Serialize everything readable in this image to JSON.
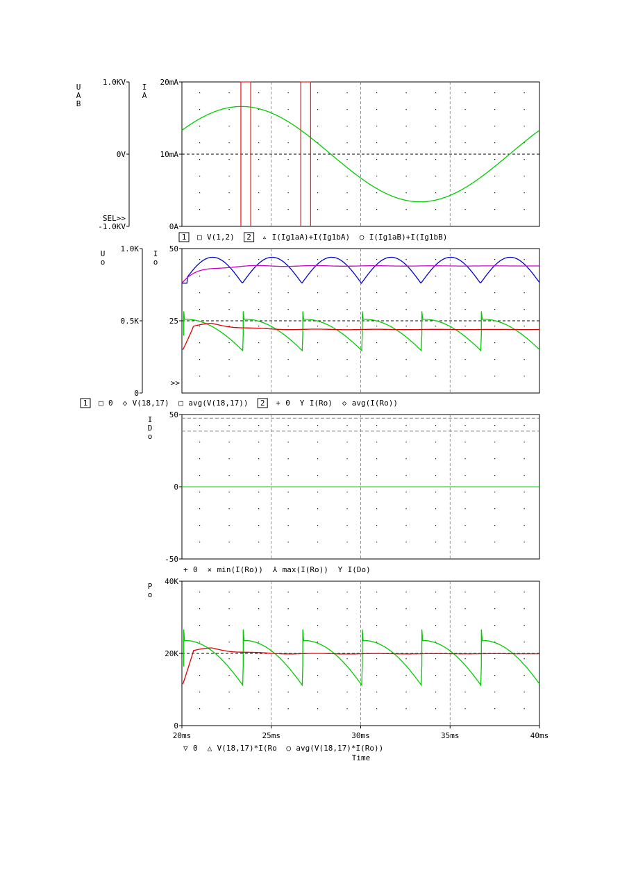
{
  "chart_data": [
    {
      "type": "line",
      "title": "",
      "xlabel": "",
      "xlim": [
        20,
        40
      ],
      "xticks": [
        "20ms",
        "25ms",
        "30ms",
        "35ms",
        "40ms"
      ],
      "left_axis": {
        "label": [
          "U",
          "A",
          "B"
        ],
        "ylim": [
          -1000,
          1000
        ],
        "ticks": [
          "1.0KV",
          "0V",
          "-1.0KV"
        ],
        "extra_text": "SEL>>"
      },
      "right_axis": {
        "label": [
          "I",
          "A"
        ],
        "ylim": [
          0,
          20
        ],
        "ticks": [
          "20mA",
          "10mA",
          "0A"
        ]
      },
      "legend": [
        {
          "box": "1",
          "marker": "□",
          "text": "V(1,2)",
          "color": "#00cc00"
        },
        {
          "box": "2",
          "marker": "▵",
          "text": "I(Ig1aA)+I(Ig1bA)",
          "color": "#dd0000"
        },
        {
          "box": "",
          "marker": "○",
          "text": "I(Ig1aB)+I(Ig1bB)",
          "color": "#0000cc"
        }
      ],
      "series": [
        {
          "name": "V(1,2)",
          "axis": "left",
          "color": "#00cc00",
          "amplitude": 660,
          "period_ms": 20,
          "peak_time_ms": 23.33
        },
        {
          "name": "I(Ig1aA)+I(Ig1bA)",
          "axis": "right",
          "color": "#ee2222",
          "pulses": [
            [
              23.3,
              23.85
            ],
            [
              26.65,
              27.2
            ]
          ],
          "high": 20,
          "low": 0
        }
      ]
    },
    {
      "type": "line",
      "xlim": [
        20,
        40
      ],
      "left_axis": {
        "label": [
          "U",
          "o"
        ],
        "ylim": [
          0,
          1000
        ],
        "ticks": [
          "1.0K",
          "0.5K",
          "0"
        ]
      },
      "right_axis": {
        "label": [
          "I",
          "o"
        ],
        "ylim": [
          0,
          50
        ],
        "ticks": [
          "50",
          "25"
        ],
        "extra_text": ">>"
      },
      "legend": [
        {
          "box": "1",
          "marker": "□",
          "text": "0",
          "color": "#000000"
        },
        {
          "box": "",
          "marker": "◇",
          "text": "V(18,17)",
          "color": "#00cc00"
        },
        {
          "box": "",
          "marker": "□",
          "text": "avg(V(18,17))",
          "color": "#dd0000"
        },
        {
          "box": "2",
          "marker": "+",
          "text": "0",
          "color": "#000000"
        },
        {
          "box": "",
          "marker": "Y",
          "text": "I(Ro)",
          "color": "#0000cc"
        },
        {
          "box": "",
          "marker": "◇",
          "text": "avg(I(Ro))",
          "color": "#cc00cc"
        }
      ],
      "series": [
        {
          "name": "V(18,17)",
          "axis": "left",
          "color": "#00cc00",
          "shape": "sawtooth",
          "period_ms": 3.33,
          "start_ms": 20.1,
          "peak": 510,
          "trough": 290,
          "jump_to": 410
        },
        {
          "name": "avg(V(18,17))",
          "axis": "left",
          "color": "#dd0000",
          "settle": 440,
          "overshoot_peak": 490
        },
        {
          "name": "I(Ro)",
          "axis": "right",
          "color": "#0000cc",
          "shape": "rectified-sine",
          "period_ms": 3.33,
          "peak": 47,
          "trough": 38
        },
        {
          "name": "avg(I(Ro))",
          "axis": "right",
          "color": "#cc00cc",
          "settle": 44,
          "start": 38
        }
      ]
    },
    {
      "type": "line",
      "xlim": [
        20,
        40
      ],
      "left_axis": {
        "label": [
          "I",
          "D",
          "o"
        ],
        "ylim": [
          -50,
          50
        ],
        "ticks": [
          "50",
          "0",
          "-50"
        ]
      },
      "legend": [
        {
          "box": "",
          "marker": "+",
          "text": "0",
          "color": "#000000"
        },
        {
          "box": "",
          "marker": "×",
          "text": "min(I(Ro))",
          "color": "#000000"
        },
        {
          "box": "",
          "marker": "⅄",
          "text": "max(I(Ro))",
          "color": "#000000"
        },
        {
          "box": "",
          "marker": "Y",
          "text": "I(Do)",
          "color": "#00cc00"
        }
      ],
      "series": [
        {
          "name": "max(I(Ro))",
          "axis": "left",
          "color": "#888888",
          "value": 47.5,
          "style": "dashed"
        },
        {
          "name": "min(I(Ro))",
          "axis": "left",
          "color": "#888888",
          "value": 38.5,
          "style": "dashed"
        },
        {
          "name": "I(Do)",
          "axis": "left",
          "color": "#00cc00",
          "value": 0
        }
      ]
    },
    {
      "type": "line",
      "xlim": [
        20,
        40
      ],
      "xlabel": "Time",
      "xticks": [
        "20ms",
        "25ms",
        "30ms",
        "35ms",
        "40ms"
      ],
      "left_axis": {
        "label": [
          "P",
          "o"
        ],
        "ylim": [
          0,
          40000
        ],
        "ticks": [
          "40K",
          "20K",
          "0"
        ]
      },
      "legend": [
        {
          "box": "",
          "marker": "▽",
          "text": "0",
          "color": "#000000"
        },
        {
          "box": "",
          "marker": "△",
          "text": "V(18,17)*I(Ro",
          "color": "#00cc00"
        },
        {
          "box": "",
          "marker": "○",
          "text": "avg(V(18,17)*I(Ro))",
          "color": "#dd0000"
        }
      ],
      "series": [
        {
          "name": "V(18,17)*I(Ro)",
          "axis": "left",
          "color": "#00cc00",
          "shape": "sawtooth",
          "period_ms": 3.33,
          "start_ms": 20.1,
          "peak": 23500,
          "trough": 11000,
          "jump_to": 17000
        },
        {
          "name": "avg(V(18,17)*I(Ro))",
          "axis": "left",
          "color": "#dd0000",
          "settle": 19900,
          "overshoot_peak": 21800
        }
      ]
    }
  ]
}
